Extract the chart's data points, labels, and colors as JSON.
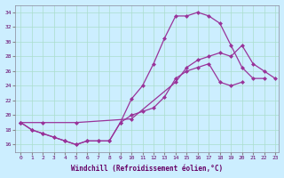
{
  "xlabel": "Windchill (Refroidissement éolien,°C)",
  "bg_color": "#cceeff",
  "line_color": "#993399",
  "grid_color": "#aaddcc",
  "xlim_min": -0.5,
  "xlim_max": 23.3,
  "ylim_min": 15.0,
  "ylim_max": 35.0,
  "yticks": [
    16,
    18,
    20,
    22,
    24,
    26,
    28,
    30,
    32,
    34
  ],
  "xticks": [
    0,
    1,
    2,
    3,
    4,
    5,
    6,
    7,
    8,
    9,
    10,
    11,
    12,
    13,
    14,
    15,
    16,
    17,
    18,
    19,
    20,
    21,
    22,
    23
  ],
  "curve_top_x": [
    0,
    1,
    2,
    3,
    4,
    5,
    6,
    7,
    8,
    9,
    10,
    11,
    12,
    13,
    14,
    15,
    16,
    17,
    18,
    19,
    20,
    21,
    22
  ],
  "curve_top_y": [
    19.0,
    18.0,
    17.5,
    17.0,
    16.5,
    16.0,
    16.5,
    16.5,
    16.5,
    19.0,
    22.2,
    24.0,
    27.0,
    30.5,
    33.5,
    33.5,
    34.0,
    33.5,
    32.5,
    29.5,
    26.5,
    25.0,
    25.0
  ],
  "curve_mid_x": [
    0,
    1,
    2,
    3,
    4,
    5,
    6,
    7,
    8,
    9,
    10,
    11,
    12,
    13,
    14,
    15,
    16,
    17,
    18,
    19,
    20
  ],
  "curve_mid_y": [
    19.0,
    18.0,
    17.5,
    17.0,
    16.5,
    16.0,
    16.5,
    16.5,
    16.5,
    19.0,
    20.0,
    20.5,
    21.0,
    22.5,
    25.0,
    26.0,
    26.5,
    27.0,
    24.5,
    24.0,
    24.5
  ],
  "curve_bot_x": [
    0,
    2,
    5,
    10,
    14,
    15,
    16,
    17,
    18,
    19,
    20,
    21,
    22,
    23
  ],
  "curve_bot_y": [
    19.0,
    19.0,
    19.0,
    19.5,
    24.5,
    26.5,
    27.5,
    28.0,
    28.5,
    28.0,
    29.5,
    27.0,
    26.0,
    25.0
  ]
}
